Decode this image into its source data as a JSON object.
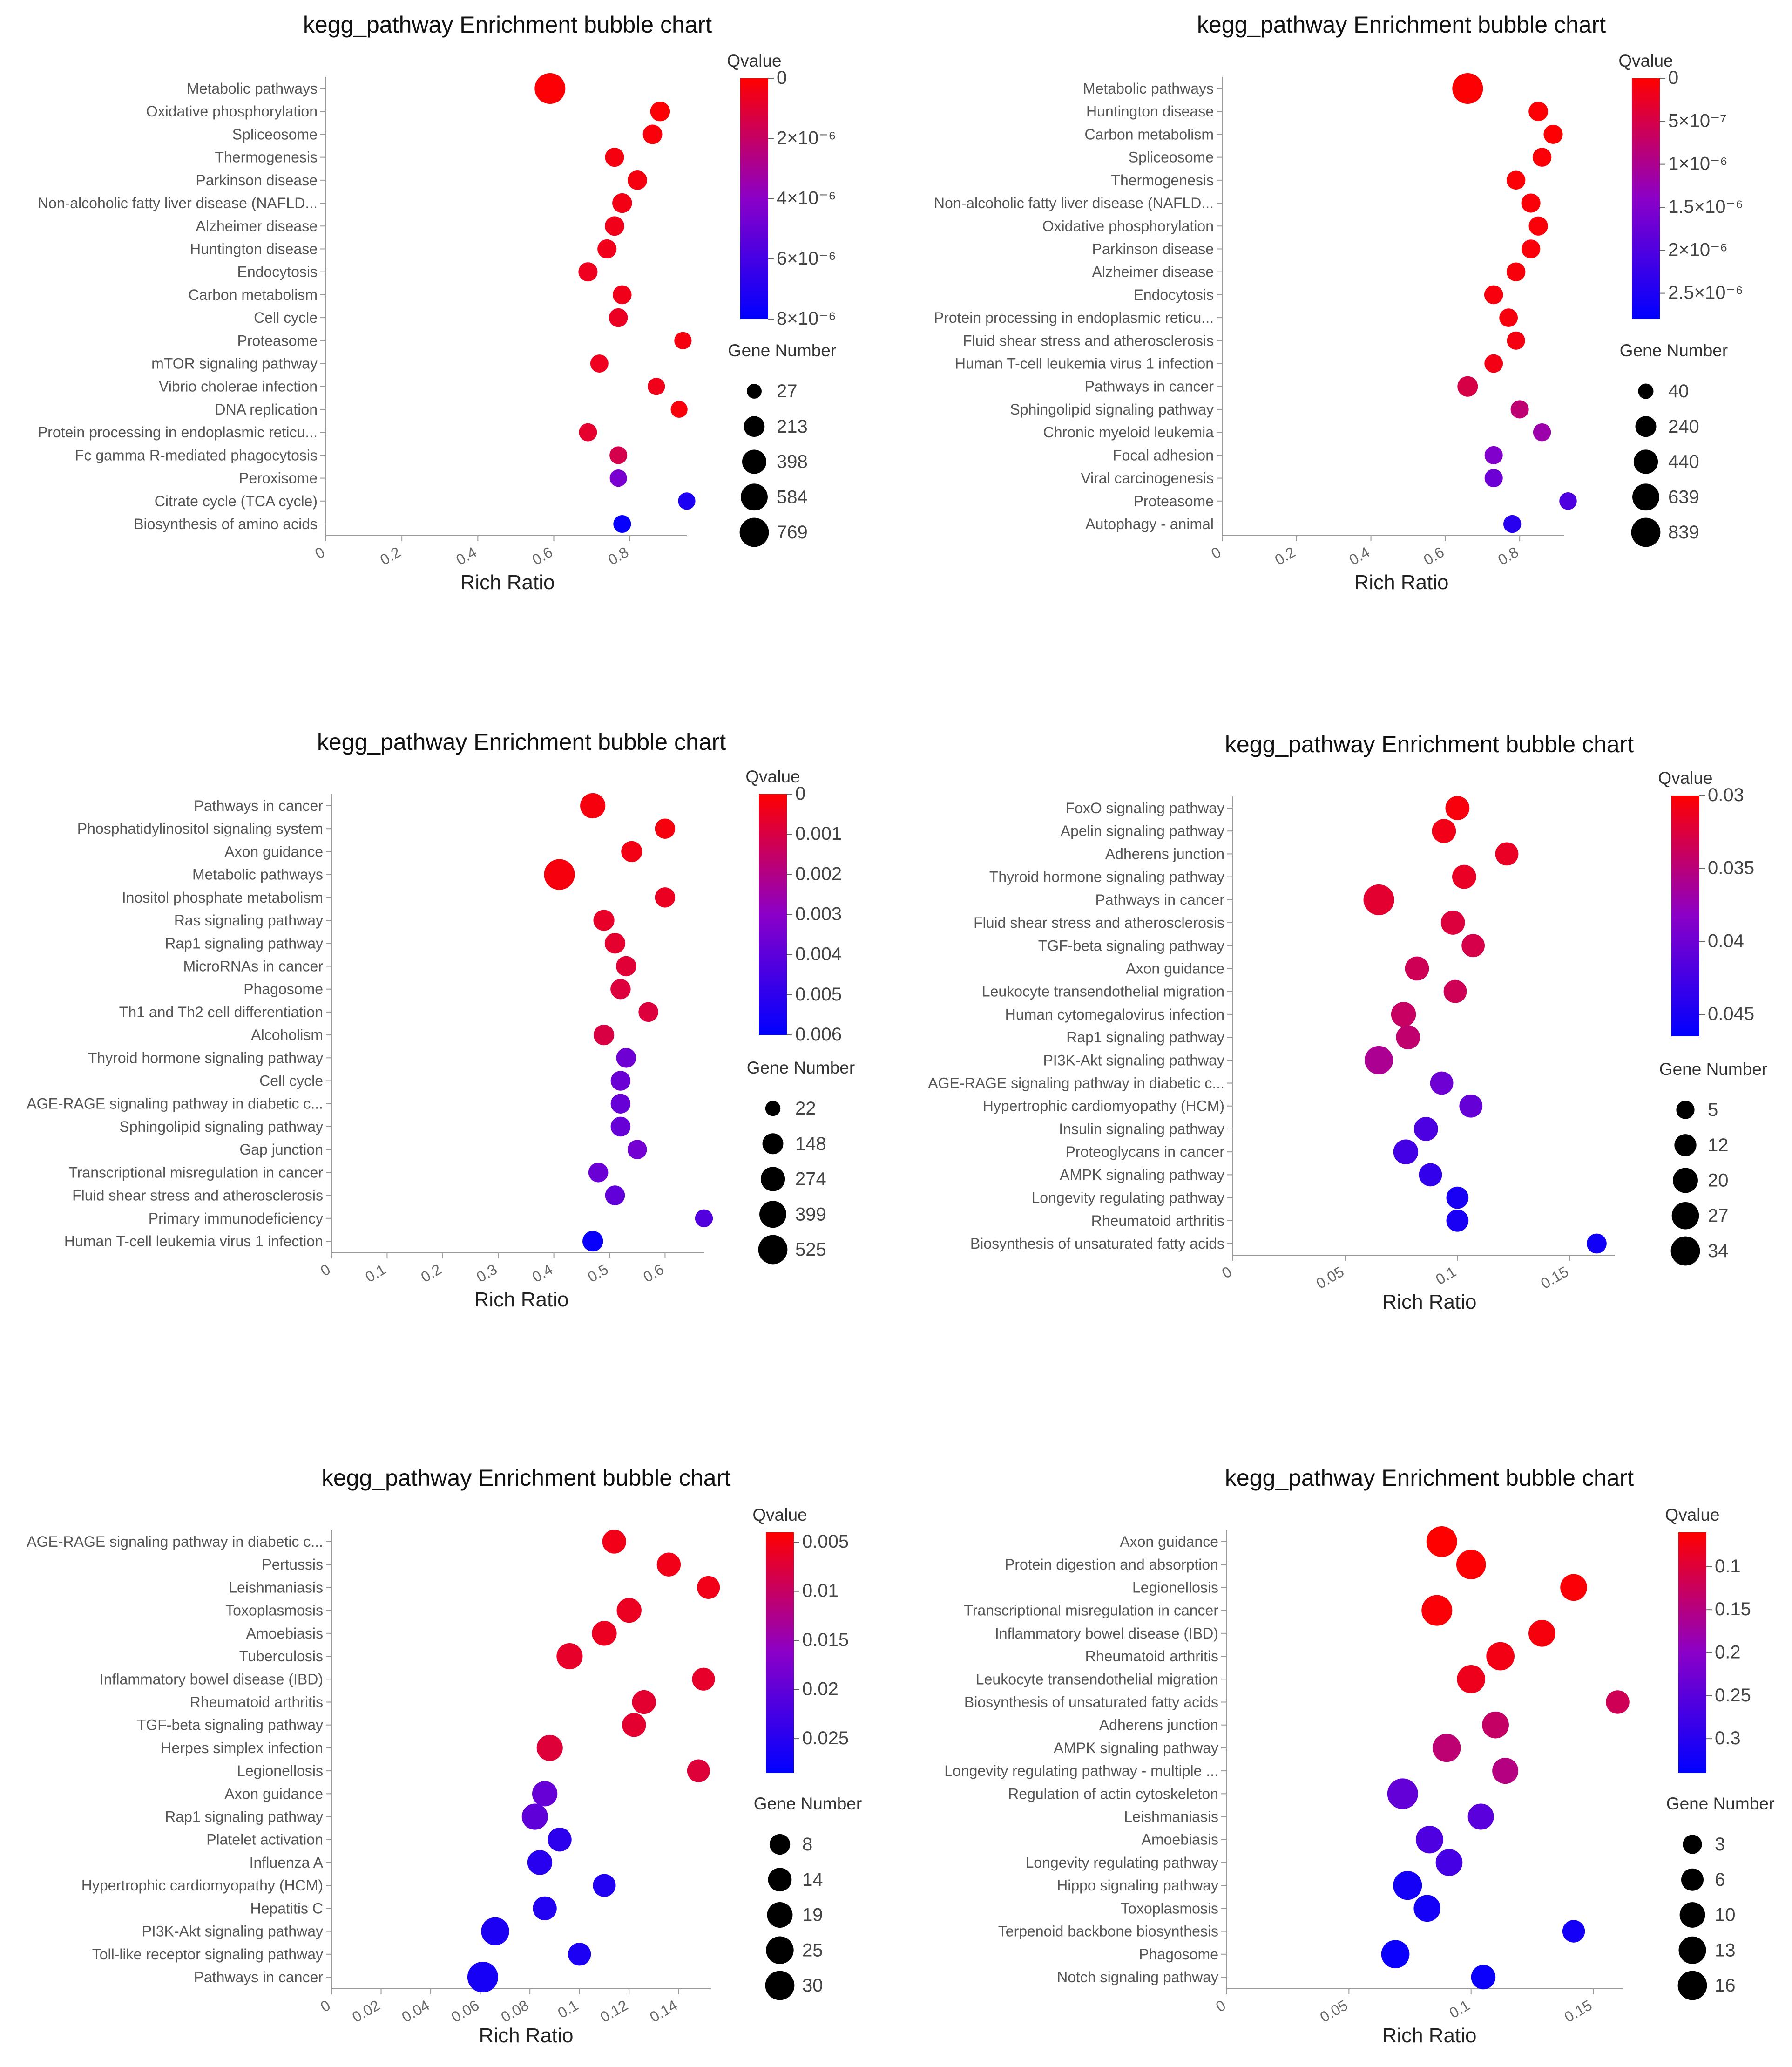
{
  "colors": {
    "high": "#ff0000",
    "mid": "#8b00c8",
    "low": "#0000ff"
  },
  "chart_data": [
    {
      "type": "scatter",
      "title": "kegg_pathway Enrichment bubble chart",
      "xlabel": "Rich Ratio",
      "xlim": [
        0,
        0.95
      ],
      "x_ticks": [
        "0",
        "0.2",
        "0.4",
        "0.6",
        "0.8"
      ],
      "categories": [
        "Metabolic pathways",
        "Oxidative phosphorylation",
        "Spliceosome",
        "Thermogenesis",
        "Parkinson disease",
        "Non-alcoholic fatty liver disease (NAFLD...",
        "Alzheimer disease",
        "Huntington disease",
        "Endocytosis",
        "Carbon metabolism",
        "Cell cycle",
        "Proteasome",
        "mTOR signaling pathway",
        "Vibrio cholerae infection",
        "DNA replication",
        "Protein processing in endoplasmic reticu...",
        "Fc gamma R-mediated phagocytosis",
        "Peroxisome",
        "Citrate cycle (TCA cycle)",
        "Biosynthesis of amino acids"
      ],
      "x": [
        0.59,
        0.88,
        0.86,
        0.76,
        0.82,
        0.78,
        0.76,
        0.74,
        0.69,
        0.78,
        0.77,
        0.94,
        0.72,
        0.87,
        0.93,
        0.69,
        0.77,
        0.77,
        0.95,
        0.78
      ],
      "qvalue": [
        1e-07,
        1e-07,
        2e-07,
        3e-07,
        3e-07,
        4e-07,
        5e-07,
        5e-07,
        6e-07,
        5e-07,
        7e-07,
        3e-07,
        6e-07,
        5e-07,
        2e-07,
        9e-07,
        1.5e-06,
        4.5e-06,
        7.2e-06,
        7.8e-06
      ],
      "gene_number": [
        769,
        130,
        120,
        110,
        120,
        130,
        120,
        110,
        110,
        100,
        100,
        60,
        80,
        60,
        50,
        80,
        70,
        60,
        60,
        70
      ],
      "color_title": "Qvalue",
      "color_range": [
        0,
        8e-06
      ],
      "color_ticks": [
        {
          "v": 0,
          "label": "0"
        },
        {
          "v": 2e-06,
          "label": "2×10⁻⁶"
        },
        {
          "v": 4e-06,
          "label": "4×10⁻⁶"
        },
        {
          "v": 6e-06,
          "label": "6×10⁻⁶"
        },
        {
          "v": 8e-06,
          "label": "8×10⁻⁶"
        }
      ],
      "size_title": "Gene Number",
      "size_legend": [
        27,
        213,
        398,
        584,
        769
      ]
    },
    {
      "type": "scatter",
      "title": "kegg_pathway Enrichment bubble chart",
      "xlabel": "Rich Ratio",
      "xlim": [
        0,
        0.92
      ],
      "x_ticks": [
        "0",
        "0.2",
        "0.4",
        "0.6",
        "0.8"
      ],
      "categories": [
        "Metabolic pathways",
        "Huntington disease",
        "Carbon metabolism",
        "Spliceosome",
        "Thermogenesis",
        "Non-alcoholic fatty liver disease (NAFLD...",
        "Oxidative phosphorylation",
        "Parkinson disease",
        "Alzheimer disease",
        "Endocytosis",
        "Protein processing in endoplasmic reticu...",
        "Fluid shear stress and atherosclerosis",
        "Human T-cell leukemia virus 1 infection",
        "Pathways in cancer",
        "Sphingolipid signaling pathway",
        "Chronic myeloid leukemia",
        "Focal adhesion",
        "Viral carcinogenesis",
        "Proteasome",
        "Autophagy - animal"
      ],
      "x": [
        0.66,
        0.85,
        0.89,
        0.86,
        0.79,
        0.83,
        0.85,
        0.83,
        0.79,
        0.73,
        0.77,
        0.79,
        0.73,
        0.66,
        0.8,
        0.86,
        0.73,
        0.73,
        0.93,
        0.78
      ],
      "qvalue": [
        2e-08,
        4e-08,
        3e-08,
        5e-08,
        5e-08,
        6e-08,
        6e-08,
        7e-08,
        8e-08,
        9e-08,
        1e-07,
        1.2e-07,
        1.5e-07,
        5e-07,
        8e-07,
        1.2e-06,
        1.5e-06,
        1.7e-06,
        2e-06,
        2.4e-06
      ],
      "gene_number": [
        839,
        130,
        120,
        110,
        110,
        120,
        120,
        110,
        110,
        110,
        100,
        90,
        100,
        170,
        90,
        80,
        90,
        90,
        70,
        80
      ],
      "color_title": "Qvalue",
      "color_range": [
        0,
        2.8e-06
      ],
      "color_ticks": [
        {
          "v": 0,
          "label": "0"
        },
        {
          "v": 5e-07,
          "label": "5×10⁻⁷"
        },
        {
          "v": 1e-06,
          "label": "1×10⁻⁶"
        },
        {
          "v": 1.5e-06,
          "label": "1.5×10⁻⁶"
        },
        {
          "v": 2e-06,
          "label": "2×10⁻⁶"
        },
        {
          "v": 2.5e-06,
          "label": "2.5×10⁻⁶"
        }
      ],
      "size_title": "Gene Number",
      "size_legend": [
        40,
        240,
        440,
        639,
        839
      ]
    },
    {
      "type": "scatter",
      "title": "kegg_pathway Enrichment bubble chart",
      "xlabel": "Rich Ratio",
      "xlim": [
        0,
        0.67
      ],
      "x_ticks": [
        "0",
        "0.1",
        "0.2",
        "0.3",
        "0.4",
        "0.5",
        "0.6"
      ],
      "categories": [
        "Pathways in cancer",
        "Phosphatidylinositol signaling system",
        "Axon guidance",
        "Metabolic pathways",
        "Inositol phosphate metabolism",
        "Ras signaling pathway",
        "Rap1 signaling pathway",
        "MicroRNAs in cancer",
        "Phagosome",
        "Th1 and Th2 cell differentiation",
        "Alcoholism",
        "Thyroid hormone signaling pathway",
        "Cell cycle",
        "AGE-RAGE signaling pathway in diabetic c...",
        "Sphingolipid signaling pathway",
        "Gap junction",
        "Transcriptional misregulation in cancer",
        "Fluid shear stress and atherosclerosis",
        "Primary immunodeficiency",
        "Human T-cell leukemia virus 1 infection"
      ],
      "x": [
        0.47,
        0.6,
        0.54,
        0.41,
        0.6,
        0.49,
        0.51,
        0.53,
        0.52,
        0.57,
        0.49,
        0.53,
        0.52,
        0.52,
        0.52,
        0.55,
        0.48,
        0.51,
        0.67,
        0.47
      ],
      "qvalue": [
        0.0002,
        0.0002,
        0.0003,
        0.0002,
        0.0005,
        0.0006,
        0.0007,
        0.0008,
        0.0009,
        0.0009,
        0.001,
        0.0036,
        0.0037,
        0.0038,
        0.0038,
        0.0035,
        0.0037,
        0.0039,
        0.0042,
        0.0058
      ],
      "gene_number": [
        260,
        100,
        120,
        525,
        100,
        120,
        110,
        100,
        100,
        90,
        110,
        90,
        90,
        90,
        90,
        80,
        90,
        90,
        50,
        110
      ],
      "color_title": "Qvalue",
      "color_range": [
        0,
        0.006
      ],
      "color_ticks": [
        {
          "v": 0,
          "label": "0"
        },
        {
          "v": 0.001,
          "label": "0.001"
        },
        {
          "v": 0.002,
          "label": "0.002"
        },
        {
          "v": 0.003,
          "label": "0.003"
        },
        {
          "v": 0.004,
          "label": "0.004"
        },
        {
          "v": 0.005,
          "label": "0.005"
        },
        {
          "v": 0.006,
          "label": "0.006"
        }
      ],
      "size_title": "Gene Number",
      "size_legend": [
        22,
        148,
        274,
        399,
        525
      ]
    },
    {
      "type": "scatter",
      "title": "kegg_pathway Enrichment bubble chart",
      "xlabel": "Rich Ratio",
      "xlim": [
        0,
        0.17
      ],
      "x_ticks": [
        "0",
        "0.05",
        "0.1",
        "0.15"
      ],
      "categories": [
        "FoxO signaling pathway",
        "Apelin signaling pathway",
        "Adherens junction",
        "Thyroid hormone signaling pathway",
        "Pathways in cancer",
        "Fluid shear stress and atherosclerosis",
        "TGF-beta signaling pathway",
        "Axon guidance",
        "Leukocyte transendothelial migration",
        "Human cytomegalovirus infection",
        "Rap1 signaling pathway",
        "PI3K-Akt signaling pathway",
        "AGE-RAGE signaling pathway in diabetic c...",
        "Hypertrophic cardiomyopathy (HCM)",
        "Insulin signaling pathway",
        "Proteoglycans in cancer",
        "AMPK signaling pathway",
        "Longevity regulating pathway",
        "Rheumatoid arthritis",
        "Biosynthesis of unsaturated fatty acids"
      ],
      "x": [
        0.1,
        0.094,
        0.122,
        0.103,
        0.065,
        0.098,
        0.107,
        0.082,
        0.099,
        0.076,
        0.078,
        0.065,
        0.093,
        0.106,
        0.086,
        0.077,
        0.088,
        0.1,
        0.1,
        0.162
      ],
      "qvalue": [
        0.0305,
        0.031,
        0.0315,
        0.0315,
        0.032,
        0.0325,
        0.033,
        0.0335,
        0.0335,
        0.034,
        0.0345,
        0.036,
        0.04,
        0.0405,
        0.042,
        0.0425,
        0.0435,
        0.045,
        0.045,
        0.0455
      ],
      "gene_number": [
        14,
        14,
        12,
        14,
        34,
        14,
        12,
        14,
        12,
        16,
        14,
        26,
        12,
        12,
        14,
        16,
        12,
        10,
        10,
        6
      ],
      "color_title": "Qvalue",
      "color_range": [
        0.03,
        0.0465
      ],
      "color_ticks": [
        {
          "v": 0.03,
          "label": "0.03"
        },
        {
          "v": 0.035,
          "label": "0.035"
        },
        {
          "v": 0.04,
          "label": "0.04"
        },
        {
          "v": 0.045,
          "label": "0.045"
        }
      ],
      "size_title": "Gene Number",
      "size_legend": [
        5,
        12,
        20,
        27,
        34
      ]
    },
    {
      "type": "scatter",
      "title": "kegg_pathway Enrichment bubble chart",
      "xlabel": "Rich Ratio",
      "xlim": [
        0,
        0.153
      ],
      "x_ticks": [
        "0",
        "0.02",
        "0.04",
        "0.06",
        "0.08",
        "0.1",
        "0.12",
        "0.14"
      ],
      "categories": [
        "AGE-RAGE signaling pathway in diabetic c...",
        "Pertussis",
        "Leishmaniasis",
        "Toxoplasmosis",
        "Amoebiasis",
        "Tuberculosis",
        "Inflammatory bowel disease (IBD)",
        "Rheumatoid arthritis",
        "TGF-beta signaling pathway",
        "Herpes simplex infection",
        "Legionellosis",
        "Axon guidance",
        "Rap1 signaling pathway",
        "Platelet activation",
        "Influenza A",
        "Hypertrophic cardiomyopathy (HCM)",
        "Hepatitis C",
        "PI3K-Akt signaling pathway",
        "Toll-like receptor signaling pathway",
        "Pathways in cancer"
      ],
      "x": [
        0.114,
        0.136,
        0.152,
        0.12,
        0.11,
        0.096,
        0.15,
        0.126,
        0.122,
        0.088,
        0.148,
        0.086,
        0.082,
        0.092,
        0.084,
        0.11,
        0.086,
        0.066,
        0.1,
        0.061
      ],
      "qvalue": [
        0.0055,
        0.0055,
        0.0055,
        0.006,
        0.006,
        0.0065,
        0.0065,
        0.007,
        0.007,
        0.0075,
        0.0075,
        0.0195,
        0.02,
        0.0245,
        0.025,
        0.0255,
        0.0255,
        0.026,
        0.026,
        0.0265
      ],
      "gene_number": [
        12,
        12,
        10,
        14,
        14,
        17,
        10,
        12,
        12,
        17,
        10,
        15,
        17,
        12,
        14,
        10,
        12,
        22,
        10,
        30
      ],
      "color_title": "Qvalue",
      "color_range": [
        0.004,
        0.0285
      ],
      "color_ticks": [
        {
          "v": 0.005,
          "label": "0.005"
        },
        {
          "v": 0.01,
          "label": "0.01"
        },
        {
          "v": 0.015,
          "label": "0.015"
        },
        {
          "v": 0.02,
          "label": "0.02"
        },
        {
          "v": 0.025,
          "label": "0.025"
        }
      ],
      "size_title": "Gene Number",
      "size_legend": [
        8,
        14,
        19,
        25,
        30
      ]
    },
    {
      "type": "scatter",
      "title": "kegg_pathway Enrichment bubble chart",
      "xlabel": "Rich Ratio",
      "xlim": [
        0,
        0.162
      ],
      "x_ticks": [
        "0",
        "0.05",
        "0.1",
        "0.15"
      ],
      "categories": [
        "Axon guidance",
        "Protein digestion and absorption",
        "Legionellosis",
        "Transcriptional misregulation in cancer",
        "Inflammatory bowel disease (IBD)",
        "Rheumatoid arthritis",
        "Leukocyte transendothelial migration",
        "Biosynthesis of unsaturated fatty acids",
        "Adherens junction",
        "AMPK signaling pathway",
        "Longevity regulating pathway - multiple ...",
        "Regulation of actin cytoskeleton",
        "Leishmaniasis",
        "Amoebiasis",
        "Longevity regulating pathway",
        "Hippo signaling pathway",
        "Toxoplasmosis",
        "Terpenoid backbone biosynthesis",
        "Phagosome",
        "Notch signaling pathway"
      ],
      "x": [
        0.088,
        0.1,
        0.142,
        0.086,
        0.129,
        0.112,
        0.1,
        0.16,
        0.11,
        0.09,
        0.114,
        0.072,
        0.104,
        0.083,
        0.091,
        0.074,
        0.082,
        0.142,
        0.069,
        0.105
      ],
      "qvalue": [
        0.06,
        0.062,
        0.065,
        0.065,
        0.07,
        0.075,
        0.08,
        0.12,
        0.13,
        0.14,
        0.15,
        0.24,
        0.25,
        0.26,
        0.27,
        0.32,
        0.32,
        0.32,
        0.33,
        0.33
      ],
      "gene_number": [
        16,
        14,
        10,
        16,
        10,
        12,
        12,
        6,
        10,
        12,
        9,
        16,
        9,
        11,
        10,
        13,
        10,
        5,
        12,
        7
      ],
      "color_title": "Qvalue",
      "color_range": [
        0.06,
        0.34
      ],
      "color_ticks": [
        {
          "v": 0.1,
          "label": "0.1"
        },
        {
          "v": 0.15,
          "label": "0.15"
        },
        {
          "v": 0.2,
          "label": "0.2"
        },
        {
          "v": 0.25,
          "label": "0.25"
        },
        {
          "v": 0.3,
          "label": "0.3"
        }
      ],
      "size_title": "Gene Number",
      "size_legend": [
        3,
        6,
        10,
        13,
        16
      ]
    }
  ]
}
